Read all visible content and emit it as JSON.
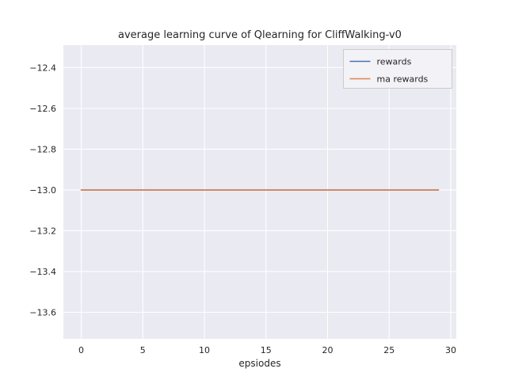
{
  "chart_data": {
    "type": "line",
    "title": "average learning curve of Qlearning for CliffWalking-v0",
    "xlabel": "epsiodes",
    "ylabel": "",
    "xlim": [
      -1.45,
      30.45
    ],
    "ylim": [
      -13.73,
      -12.29
    ],
    "xticks": [
      0,
      5,
      10,
      15,
      20,
      25,
      30
    ],
    "yticks": [
      -12.4,
      -12.6,
      -12.8,
      -13.0,
      -13.2,
      -13.4,
      -13.6
    ],
    "grid": true,
    "legend": {
      "position": "upper right",
      "entries": [
        {
          "label": "rewards",
          "color": "#4C72B0"
        },
        {
          "label": "ma rewards",
          "color": "#DD8452"
        }
      ]
    },
    "series": [
      {
        "name": "rewards",
        "color": "#4C72B0",
        "x": [
          0,
          29
        ],
        "y": [
          -13.0,
          -13.0
        ]
      },
      {
        "name": "ma rewards",
        "color": "#DD8452",
        "x": [
          0,
          29
        ],
        "y": [
          -13.0,
          -13.0
        ]
      }
    ],
    "styles": {
      "plot_bg": "#eaeaf2",
      "grid_color": "#ffffff",
      "fig_bg": "#ffffff",
      "tick_color": "#262626",
      "legend_bg": "#f2f2f7",
      "legend_border": "#cccccc"
    }
  }
}
